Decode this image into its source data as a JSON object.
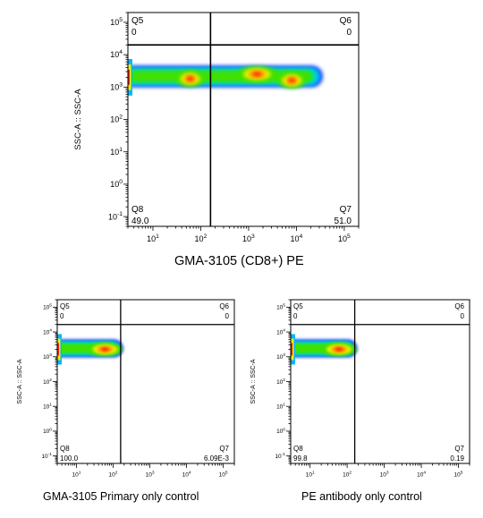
{
  "chart_data": [
    {
      "type": "scatter",
      "subtype": "flow-cytometry-density-quadrant",
      "xlabel": "GMA-3105 (CD8+)  PE",
      "ylabel": "SSC-A :: SSC-A",
      "x_scale": "log",
      "y_scale": "log",
      "xlim": [
        3,
        200000
      ],
      "ylim": [
        0.05,
        200000
      ],
      "x_tick_labels": [
        "10^1",
        "10^2",
        "10^3",
        "10^4",
        "10^5"
      ],
      "y_tick_labels": [
        "10^-1",
        "10^0",
        "10^1",
        "10^2",
        "10^3",
        "10^4",
        "10^5"
      ],
      "gate": {
        "x": 160,
        "y": 20000
      },
      "quadrants": [
        {
          "name": "Q5",
          "value": "0",
          "corner": "top-left"
        },
        {
          "name": "Q6",
          "value": "0",
          "corner": "top-right"
        },
        {
          "name": "Q8",
          "value": "49.0",
          "corner": "bottom-left"
        },
        {
          "name": "Q7",
          "value": "51.0",
          "corner": "bottom-right"
        }
      ],
      "density": {
        "x_range": [
          3,
          30000
        ],
        "y_center": 2000,
        "peaks": [
          {
            "x": 60,
            "y": 1800
          },
          {
            "x": 1500,
            "y": 2500
          },
          {
            "x": 8000,
            "y": 1600
          }
        ]
      }
    },
    {
      "type": "scatter",
      "subtype": "flow-cytometry-density-quadrant",
      "xlabel": "",
      "ylabel": "SSC-A :: SSC-A",
      "x_scale": "log",
      "y_scale": "log",
      "xlim": [
        3,
        200000
      ],
      "ylim": [
        0.05,
        200000
      ],
      "x_tick_labels": [
        "10^1",
        "10^2",
        "10^3",
        "10^4",
        "10^5"
      ],
      "y_tick_labels": [
        "10^-1",
        "10^0",
        "10^1",
        "10^2",
        "10^3",
        "10^4",
        "10^5"
      ],
      "gate": {
        "x": 160,
        "y": 20000
      },
      "quadrants": [
        {
          "name": "Q5",
          "value": "0",
          "corner": "top-left"
        },
        {
          "name": "Q6",
          "value": "0",
          "corner": "top-right"
        },
        {
          "name": "Q8",
          "value": "100.0",
          "corner": "bottom-left"
        },
        {
          "name": "Q7",
          "value": "6.09E-3",
          "corner": "bottom-right"
        }
      ],
      "density": {
        "x_range": [
          3,
          150
        ],
        "y_center": 2000,
        "peaks": [
          {
            "x": 60,
            "y": 2000
          }
        ]
      }
    },
    {
      "type": "scatter",
      "subtype": "flow-cytometry-density-quadrant",
      "xlabel": "",
      "ylabel": "SSC-A :: SSC-A",
      "x_scale": "log",
      "y_scale": "log",
      "xlim": [
        3,
        200000
      ],
      "ylim": [
        0.05,
        200000
      ],
      "x_tick_labels": [
        "10^1",
        "10^2",
        "10^3",
        "10^4",
        "10^5"
      ],
      "y_tick_labels": [
        "10^-1",
        "10^0",
        "10^1",
        "10^2",
        "10^3",
        "10^4",
        "10^5"
      ],
      "gate": {
        "x": 160,
        "y": 20000
      },
      "quadrants": [
        {
          "name": "Q5",
          "value": "0",
          "corner": "top-left"
        },
        {
          "name": "Q6",
          "value": "0",
          "corner": "top-right"
        },
        {
          "name": "Q8",
          "value": "99.8",
          "corner": "bottom-left"
        },
        {
          "name": "Q7",
          "value": "0.19",
          "corner": "bottom-right"
        }
      ],
      "density": {
        "x_range": [
          3,
          150
        ],
        "y_center": 2000,
        "peaks": [
          {
            "x": 60,
            "y": 2000
          }
        ]
      }
    }
  ],
  "captions": {
    "main": "GMA-3105 (CD8+)  PE",
    "left": "GMA-3105  Primary only control",
    "right": "PE antibody only control"
  },
  "colors": {
    "density_ramp": [
      "#1e3cff",
      "#00b8ff",
      "#00e0a0",
      "#40e000",
      "#f0f000",
      "#ff9a00",
      "#ff2000"
    ],
    "gate_line": "#000000",
    "frame": "#000000"
  }
}
